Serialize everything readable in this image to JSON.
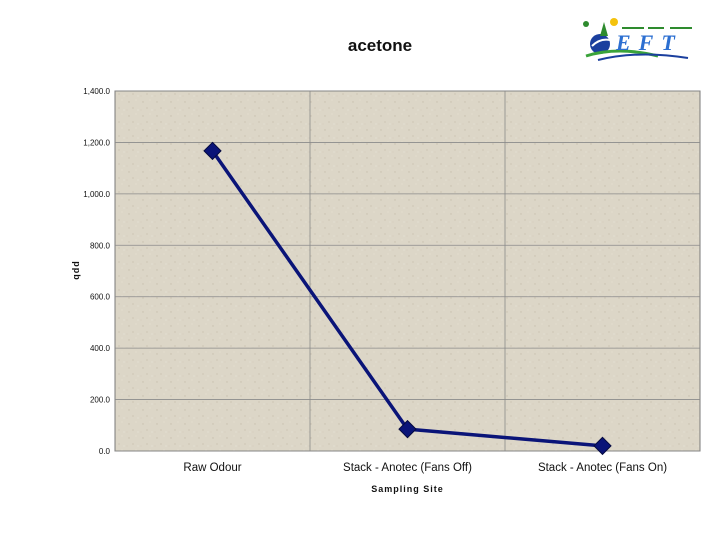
{
  "chart_data": {
    "type": "line",
    "title": "acetone",
    "xlabel": "Sampling Site",
    "ylabel": "ppb",
    "categories": [
      "Raw Odour",
      "Stack - Anotec (Fans Off)",
      "Stack - Anotec (Fans On)"
    ],
    "series": [
      {
        "values": [
          1167,
          85,
          20
        ]
      }
    ],
    "ylim": [
      0,
      1400
    ],
    "yticks": [
      "0.0",
      "200.0",
      "400.0",
      "600.0",
      "800.0",
      "1,000.0",
      "1,200.0",
      "1,400.0"
    ],
    "ytick_values": [
      0,
      200,
      400,
      600,
      800,
      1000,
      1200,
      1400
    ],
    "grid": true,
    "legend": "none",
    "colors": {
      "series": "#0a1478",
      "plot_background": "#d9d3c4",
      "grid": "#8a8a8a"
    }
  },
  "logo": {
    "text": "EFT",
    "icon": "eft-logo-icon"
  }
}
